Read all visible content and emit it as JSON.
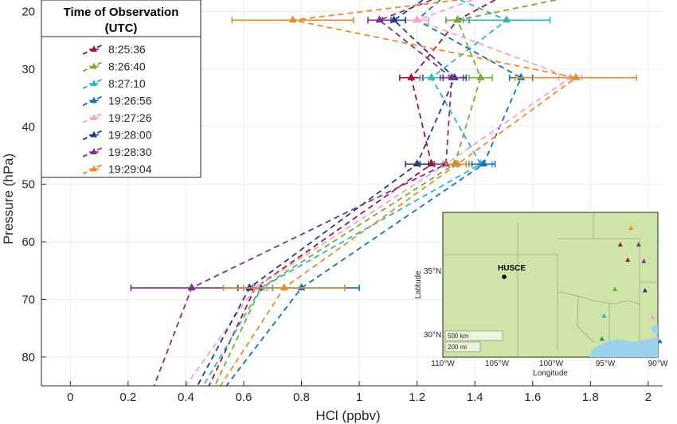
{
  "chart_data": {
    "type": "line",
    "xlabel": "HCl (ppbv)",
    "ylabel": "Pressure (hPa)",
    "xlim": [
      -0.1,
      2.05
    ],
    "ylim": [
      18,
      85
    ],
    "y_reversed": true,
    "xticks": [
      "0",
      "0.2",
      "0.4",
      "0.6",
      "0.8",
      "1",
      "1.2",
      "1.4",
      "1.6",
      "1.8",
      "2"
    ],
    "yticks": [
      "20",
      "30",
      "40",
      "50",
      "60",
      "70",
      "80"
    ],
    "grid": true,
    "legend": {
      "title_line1": "Time of Observation",
      "title_line2": "(UTC)",
      "placement": "top-left"
    },
    "levels": [
      21.5,
      31.5,
      46.5,
      68.0
    ],
    "series": [
      {
        "name": "8:25:36",
        "color": "#a2142f",
        "values": [
          1.34,
          1.18,
          1.25,
          0.64
        ],
        "err": [
          0.04,
          0.04,
          0.04,
          0.04
        ],
        "top": [
          1.47,
          18
        ],
        "bottom": [
          0.48,
          85
        ]
      },
      {
        "name": "8:26:40",
        "color": "#77ac30",
        "values": [
          1.34,
          1.42,
          1.33,
          0.66
        ],
        "err": [
          0.04,
          0.04,
          0.04,
          0.04
        ],
        "top": [
          1.68,
          18
        ],
        "bottom": [
          0.5,
          85
        ]
      },
      {
        "name": "8:27:10",
        "color": "#2bb5c9",
        "values": [
          1.51,
          1.25,
          1.42,
          0.66
        ],
        "err": [
          0.15,
          0.04,
          0.04,
          0.04
        ],
        "top": [
          1.35,
          18
        ],
        "bottom": [
          0.46,
          85
        ]
      },
      {
        "name": "19:26:56",
        "color": "#0f72bd",
        "values": [
          1.2,
          1.56,
          1.43,
          0.8
        ],
        "err": [
          0.04,
          0.04,
          0.04,
          0.2
        ],
        "top": [
          1.28,
          18
        ],
        "bottom": [
          0.54,
          85
        ]
      },
      {
        "name": "19:27:26",
        "color": "#f4a2c8",
        "values": [
          1.2,
          1.73,
          1.3,
          0.64
        ],
        "err": [
          0.04,
          0.04,
          0.04,
          0.04
        ],
        "top": [
          1.39,
          18
        ],
        "bottom": [
          0.4,
          85
        ]
      },
      {
        "name": "19:28:00",
        "color": "#1f3c8a",
        "values": [
          1.12,
          1.33,
          1.2,
          0.62
        ],
        "err": [
          0.04,
          0.04,
          0.04,
          0.04
        ],
        "top": [
          1.22,
          18
        ],
        "bottom": [
          0.44,
          85
        ]
      },
      {
        "name": "19:28:30",
        "color": "#7e2f8e",
        "values": [
          1.07,
          1.32,
          1.3,
          0.42
        ],
        "err": [
          0.04,
          0.04,
          0.04,
          0.21
        ],
        "top": [
          1.25,
          18
        ],
        "bottom": [
          0.29,
          85
        ]
      },
      {
        "name": "19:29:04",
        "color": "#ed8a25",
        "values": [
          0.77,
          1.75,
          1.34,
          0.74
        ],
        "err": [
          0.21,
          0.21,
          0.04,
          0.21
        ],
        "top": [
          1.34,
          18
        ],
        "bottom": [
          0.52,
          85
        ]
      }
    ]
  },
  "inset_map": {
    "xlabel": "Longitude",
    "ylabel": "Latitude",
    "xticks": [
      "110°W",
      "105°W",
      "100°W",
      "95°W",
      "90°W"
    ],
    "yticks": [
      "35°N",
      "30°N"
    ],
    "site_label": "HUSCE",
    "scale_km": "500 km",
    "scale_mi": "200 mi",
    "land_color": "#cfe5a8",
    "water_color": "#9ad2ee",
    "markers": [
      {
        "lon": 92.5,
        "lat": 38.5,
        "color": "#ed8a25"
      },
      {
        "lon": 93.5,
        "lat": 37.2,
        "color": "#a2142f"
      },
      {
        "lon": 91.8,
        "lat": 37.2,
        "color": "#7e2f8e"
      },
      {
        "lon": 92.8,
        "lat": 36.0,
        "color": "#a2142f"
      },
      {
        "lon": 91.3,
        "lat": 35.9,
        "color": "#7e2f8e"
      },
      {
        "lon": 94.0,
        "lat": 33.7,
        "color": "#77ac30"
      },
      {
        "lon": 91.2,
        "lat": 33.6,
        "color": "#1f3c8a"
      },
      {
        "lon": 95.0,
        "lat": 31.6,
        "color": "#2bb5c9"
      },
      {
        "lon": 90.5,
        "lat": 31.5,
        "color": "#f4a2c8"
      },
      {
        "lon": 95.2,
        "lat": 29.8,
        "color": "#2a8a3c"
      },
      {
        "lon": 89.8,
        "lat": 29.6,
        "color": "#0f72bd"
      }
    ]
  }
}
